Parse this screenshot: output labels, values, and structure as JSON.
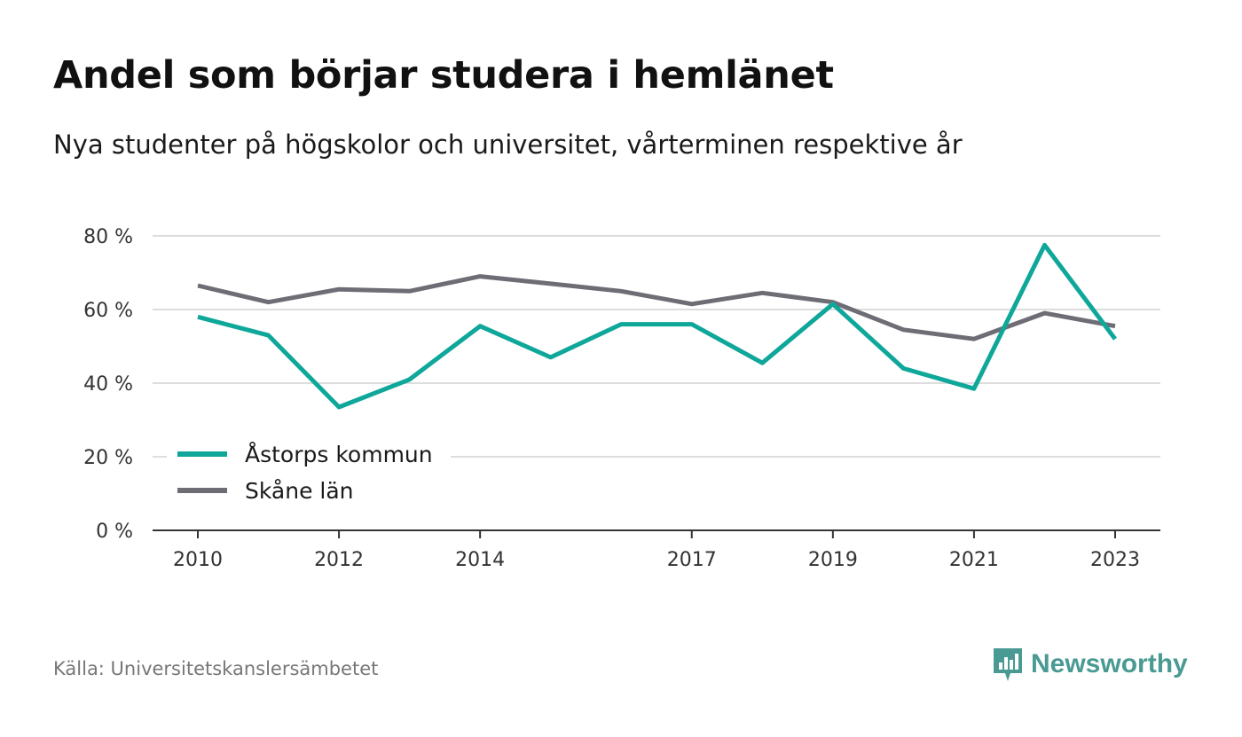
{
  "header": {
    "title": "Andel som börjar studera i hemlänet",
    "subtitle": "Nya studenter på högskolor och universitet, vårterminen respektive år"
  },
  "footer": {
    "source": "Källa: Universitetskanslersämbetet",
    "brand": "Newsworthy"
  },
  "colors": {
    "series_teal": "#0ea79a",
    "series_gray": "#6e6d75",
    "grid": "#dddddd",
    "axis": "#333333",
    "brand": "#4a9a94"
  },
  "icons": {
    "brand_logo": "newsworthy-logo-icon"
  },
  "chart_data": {
    "type": "line",
    "title": "Andel som börjar studera i hemlänet",
    "subtitle": "Nya studenter på högskolor och universitet, vårterminen respektive år",
    "xlabel": "",
    "ylabel": "",
    "ylim": [
      0,
      80
    ],
    "yticks": [
      0,
      20,
      40,
      60,
      80
    ],
    "ytick_labels": [
      "0 %",
      "20 %",
      "40 %",
      "60 %",
      "80 %"
    ],
    "xticks": [
      2010,
      2012,
      2014,
      2017,
      2019,
      2021,
      2023
    ],
    "xtick_labels": [
      "2010",
      "2012",
      "2014",
      "2017",
      "2019",
      "2021",
      "2023"
    ],
    "grid": true,
    "legend": "bottom-left",
    "x": [
      2010,
      2011,
      2012,
      2013,
      2014,
      2015,
      2016,
      2017,
      2018,
      2019,
      2020,
      2021,
      2022,
      2023
    ],
    "series": [
      {
        "name": "Åstorps kommun",
        "color": "#0ea79a",
        "values": [
          58,
          53,
          33.5,
          41,
          55.5,
          47,
          56,
          56,
          45.5,
          61.5,
          44,
          38.5,
          77.5,
          52
        ]
      },
      {
        "name": "Skåne län",
        "color": "#6e6d75",
        "values": [
          66.5,
          62,
          65.5,
          65,
          69,
          67,
          65,
          61.5,
          64.5,
          62,
          54.5,
          52,
          59,
          55.5
        ]
      }
    ]
  }
}
